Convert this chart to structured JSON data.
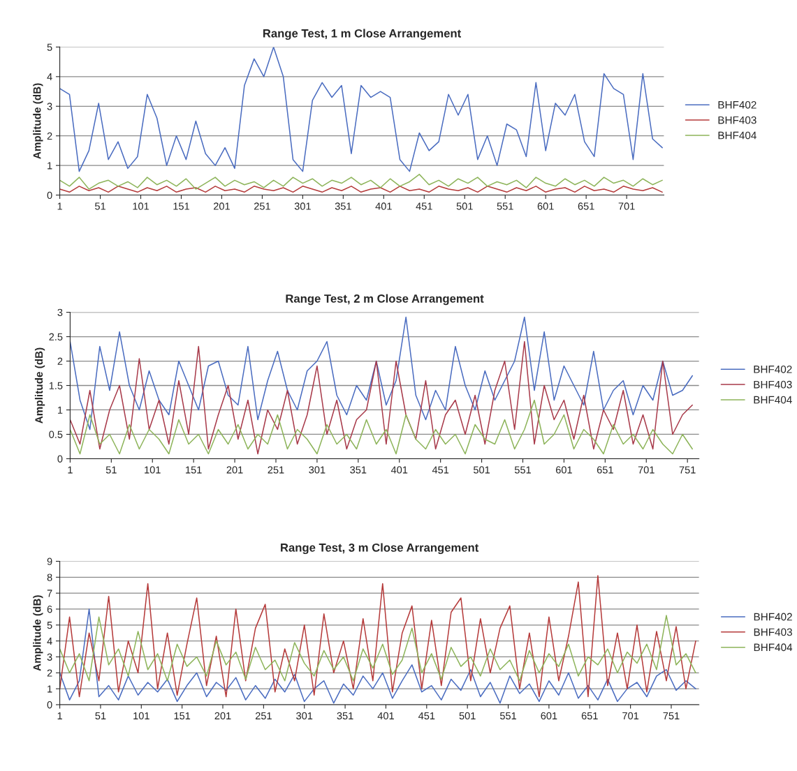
{
  "chart_data": [
    {
      "type": "line",
      "title": "Range Test, 1 m Close Arrangement",
      "ylabel": "Amplitude (dB)",
      "x": [
        1,
        13,
        25,
        37,
        49,
        61,
        73,
        85,
        97,
        109,
        121,
        133,
        145,
        157,
        169,
        181,
        193,
        205,
        217,
        229,
        241,
        253,
        265,
        277,
        289,
        301,
        313,
        325,
        337,
        349,
        361,
        373,
        385,
        397,
        409,
        421,
        433,
        445,
        457,
        469,
        481,
        493,
        505,
        517,
        529,
        541,
        553,
        565,
        577,
        589,
        601,
        613,
        625,
        637,
        649,
        661,
        673,
        685,
        697,
        709,
        721,
        733,
        745
      ],
      "xlim": [
        1,
        747
      ],
      "xticks": [
        1,
        51,
        101,
        151,
        201,
        251,
        301,
        351,
        401,
        451,
        501,
        551,
        601,
        651,
        701
      ],
      "ylim": [
        0,
        5
      ],
      "yticks": [
        0,
        1,
        2,
        3,
        4,
        5
      ],
      "grid": "y",
      "legend": "right",
      "series": [
        {
          "name": "BHF402",
          "color": "#4a6cc0",
          "values": [
            3.6,
            3.4,
            0.8,
            1.5,
            3.1,
            1.2,
            1.8,
            0.9,
            1.3,
            3.4,
            2.6,
            1.0,
            2.0,
            1.2,
            2.5,
            1.4,
            1.0,
            1.6,
            0.9,
            3.7,
            4.6,
            4.0,
            5.0,
            4.0,
            1.2,
            0.8,
            3.2,
            3.8,
            3.3,
            3.7,
            1.4,
            3.7,
            3.3,
            3.5,
            3.3,
            1.2,
            0.8,
            2.1,
            1.5,
            1.8,
            3.4,
            2.7,
            3.4,
            1.2,
            2.0,
            1.0,
            2.4,
            2.2,
            1.3,
            3.8,
            1.5,
            3.1,
            2.7,
            3.4,
            1.8,
            1.3,
            4.1,
            3.6,
            3.4,
            1.2,
            4.1,
            1.9,
            1.6
          ]
        },
        {
          "name": "BHF403",
          "color": "#b53a3a",
          "values": [
            0.2,
            0.1,
            0.3,
            0.15,
            0.25,
            0.1,
            0.3,
            0.2,
            0.1,
            0.25,
            0.15,
            0.3,
            0.1,
            0.2,
            0.25,
            0.1,
            0.3,
            0.15,
            0.2,
            0.1,
            0.3,
            0.2,
            0.15,
            0.25,
            0.1,
            0.3,
            0.2,
            0.1,
            0.25,
            0.15,
            0.3,
            0.1,
            0.2,
            0.25,
            0.1,
            0.3,
            0.15,
            0.2,
            0.1,
            0.3,
            0.2,
            0.15,
            0.25,
            0.1,
            0.3,
            0.2,
            0.1,
            0.25,
            0.15,
            0.3,
            0.1,
            0.2,
            0.25,
            0.1,
            0.3,
            0.15,
            0.2,
            0.1,
            0.3,
            0.2,
            0.15,
            0.25,
            0.1
          ]
        },
        {
          "name": "BHF404",
          "color": "#8db45a",
          "values": [
            0.5,
            0.3,
            0.6,
            0.2,
            0.4,
            0.5,
            0.3,
            0.45,
            0.25,
            0.6,
            0.35,
            0.5,
            0.3,
            0.55,
            0.2,
            0.4,
            0.6,
            0.3,
            0.5,
            0.35,
            0.45,
            0.25,
            0.5,
            0.3,
            0.6,
            0.4,
            0.55,
            0.3,
            0.5,
            0.4,
            0.6,
            0.35,
            0.5,
            0.25,
            0.55,
            0.3,
            0.45,
            0.7,
            0.35,
            0.5,
            0.3,
            0.55,
            0.4,
            0.6,
            0.3,
            0.45,
            0.35,
            0.5,
            0.25,
            0.6,
            0.4,
            0.3,
            0.55,
            0.35,
            0.5,
            0.3,
            0.6,
            0.4,
            0.5,
            0.3,
            0.55,
            0.35,
            0.5
          ]
        }
      ]
    },
    {
      "type": "line",
      "title": "Range Test, 2 m Close Arrangement",
      "ylabel": "Amplitude (dB)",
      "x": [
        1,
        13,
        25,
        37,
        49,
        61,
        73,
        85,
        97,
        109,
        121,
        133,
        145,
        157,
        169,
        181,
        193,
        205,
        217,
        229,
        241,
        253,
        265,
        277,
        289,
        301,
        313,
        325,
        337,
        349,
        361,
        373,
        385,
        397,
        409,
        421,
        433,
        445,
        457,
        469,
        481,
        493,
        505,
        517,
        529,
        541,
        553,
        565,
        577,
        589,
        601,
        613,
        625,
        637,
        649,
        661,
        673,
        685,
        697,
        709,
        721,
        733,
        745,
        757
      ],
      "xlim": [
        1,
        765
      ],
      "xticks": [
        1,
        51,
        101,
        151,
        201,
        251,
        301,
        351,
        401,
        451,
        501,
        551,
        601,
        651,
        701,
        751
      ],
      "ylim": [
        0,
        3
      ],
      "yticks": [
        0,
        0.5,
        1,
        1.5,
        2,
        2.5,
        3
      ],
      "grid": "y",
      "legend": "right",
      "series": [
        {
          "name": "BHF402",
          "color": "#4a6cc0",
          "values": [
            2.4,
            1.2,
            0.6,
            2.3,
            1.4,
            2.6,
            1.5,
            1.0,
            1.8,
            1.2,
            0.9,
            2.0,
            1.5,
            1.0,
            1.9,
            2.0,
            1.3,
            1.1,
            2.3,
            0.8,
            1.6,
            2.2,
            1.4,
            1.0,
            1.8,
            2.0,
            2.4,
            1.3,
            0.9,
            1.5,
            1.2,
            2.0,
            1.1,
            1.6,
            2.9,
            1.3,
            0.8,
            1.4,
            1.0,
            2.3,
            1.5,
            1.0,
            1.8,
            1.2,
            1.6,
            2.0,
            2.9,
            1.4,
            2.6,
            1.2,
            1.9,
            1.5,
            1.1,
            2.2,
            1.0,
            1.4,
            1.6,
            0.9,
            1.5,
            1.2,
            2.0,
            1.3,
            1.4,
            1.7
          ]
        },
        {
          "name": "BHF403",
          "color": "#a83a4a",
          "values": [
            0.8,
            0.3,
            1.4,
            0.2,
            1.0,
            1.5,
            0.4,
            2.05,
            0.6,
            1.2,
            0.3,
            1.6,
            0.5,
            2.3,
            0.2,
            0.9,
            1.5,
            0.4,
            1.2,
            0.1,
            1.0,
            0.6,
            1.4,
            0.3,
            0.9,
            1.9,
            0.5,
            1.2,
            0.2,
            0.8,
            1.0,
            2.0,
            0.3,
            2.0,
            0.9,
            0.4,
            1.6,
            0.2,
            0.9,
            1.2,
            0.5,
            1.3,
            0.3,
            1.4,
            2.0,
            0.6,
            2.4,
            0.3,
            1.5,
            0.8,
            1.2,
            0.4,
            1.3,
            0.2,
            1.0,
            0.6,
            1.4,
            0.3,
            0.9,
            0.2,
            2.0,
            0.5,
            0.9,
            1.1
          ]
        },
        {
          "name": "BHF404",
          "color": "#8db45a",
          "values": [
            0.6,
            0.1,
            0.9,
            0.3,
            0.5,
            0.1,
            0.7,
            0.2,
            0.6,
            0.4,
            0.1,
            0.8,
            0.3,
            0.5,
            0.1,
            0.6,
            0.3,
            0.7,
            0.2,
            0.5,
            0.3,
            0.9,
            0.2,
            0.6,
            0.4,
            0.1,
            0.7,
            0.3,
            0.5,
            0.2,
            0.8,
            0.3,
            0.6,
            0.1,
            0.9,
            0.4,
            0.2,
            0.6,
            0.3,
            0.5,
            0.1,
            0.7,
            0.4,
            0.3,
            0.8,
            0.2,
            0.6,
            1.2,
            0.3,
            0.5,
            0.9,
            0.2,
            0.6,
            0.4,
            0.1,
            0.7,
            0.3,
            0.5,
            0.2,
            0.6,
            0.3,
            0.1,
            0.5,
            0.2
          ]
        }
      ]
    },
    {
      "type": "line",
      "title": "Range Test, 3 m Close Arrangement",
      "ylabel": "Amplitude (dB)",
      "x": [
        1,
        13,
        25,
        37,
        49,
        61,
        73,
        85,
        97,
        109,
        121,
        133,
        145,
        157,
        169,
        181,
        193,
        205,
        217,
        229,
        241,
        253,
        265,
        277,
        289,
        301,
        313,
        325,
        337,
        349,
        361,
        373,
        385,
        397,
        409,
        421,
        433,
        445,
        457,
        469,
        481,
        493,
        505,
        517,
        529,
        541,
        553,
        565,
        577,
        589,
        601,
        613,
        625,
        637,
        649,
        661,
        673,
        685,
        697,
        709,
        721,
        733,
        745,
        757,
        769,
        781
      ],
      "xlim": [
        1,
        785
      ],
      "xticks": [
        1,
        51,
        101,
        151,
        201,
        251,
        301,
        351,
        401,
        451,
        501,
        551,
        601,
        651,
        701,
        751
      ],
      "ylim": [
        0,
        9
      ],
      "yticks": [
        0,
        1,
        2,
        3,
        4,
        5,
        6,
        7,
        8,
        9
      ],
      "grid": "y",
      "legend": "right",
      "series": [
        {
          "name": "BHF402",
          "color": "#4a6cc0",
          "values": [
            2.0,
            0.3,
            1.5,
            6.0,
            0.5,
            1.2,
            0.3,
            1.8,
            0.6,
            1.4,
            0.8,
            1.6,
            0.2,
            1.2,
            2.0,
            0.5,
            1.4,
            0.9,
            1.7,
            0.3,
            1.2,
            0.4,
            1.6,
            0.8,
            1.9,
            0.2,
            1.0,
            1.5,
            0.1,
            1.3,
            0.6,
            1.8,
            1.0,
            2.0,
            0.4,
            1.5,
            2.5,
            0.8,
            1.2,
            0.3,
            1.6,
            0.9,
            2.2,
            0.5,
            1.4,
            0.1,
            1.8,
            0.7,
            1.3,
            0.2,
            1.5,
            0.6,
            2.0,
            0.4,
            1.2,
            0.3,
            1.6,
            0.2,
            1.0,
            1.4,
            0.5,
            1.8,
            2.2,
            0.9,
            1.5,
            1.0
          ]
        },
        {
          "name": "BHF403",
          "color": "#b53a3a",
          "values": [
            1.0,
            5.5,
            0.5,
            4.5,
            1.5,
            6.8,
            0.8,
            4.0,
            2.0,
            7.6,
            1.0,
            4.5,
            0.6,
            3.8,
            6.7,
            1.2,
            4.3,
            0.5,
            6.0,
            1.5,
            4.8,
            6.3,
            0.8,
            3.5,
            1.5,
            5.0,
            0.6,
            5.7,
            2.0,
            4.0,
            1.0,
            5.4,
            1.5,
            7.6,
            0.8,
            4.5,
            6.2,
            1.0,
            5.3,
            1.2,
            5.8,
            6.7,
            1.5,
            5.4,
            2.0,
            4.8,
            6.2,
            1.0,
            4.5,
            0.5,
            5.5,
            1.5,
            4.3,
            7.7,
            0.5,
            8.1,
            1.2,
            4.5,
            1.0,
            5.0,
            0.8,
            4.6,
            1.5,
            4.9,
            1.0,
            4.0
          ]
        },
        {
          "name": "BHF404",
          "color": "#8db45a",
          "values": [
            3.5,
            2.0,
            3.2,
            1.5,
            5.5,
            2.5,
            3.5,
            1.8,
            4.6,
            2.2,
            3.2,
            1.5,
            3.8,
            2.4,
            3.0,
            1.8,
            4.0,
            2.5,
            3.3,
            1.6,
            3.6,
            2.2,
            2.8,
            1.5,
            3.9,
            2.6,
            1.8,
            3.4,
            2.2,
            3.0,
            1.5,
            3.5,
            2.3,
            3.8,
            1.9,
            2.8,
            4.8,
            2.0,
            3.2,
            1.6,
            3.6,
            2.4,
            3.0,
            1.8,
            3.5,
            2.2,
            2.8,
            1.5,
            3.4,
            2.0,
            3.2,
            2.4,
            3.8,
            1.8,
            3.0,
            2.5,
            3.5,
            2.0,
            3.3,
            2.6,
            3.8,
            2.2,
            5.6,
            2.5,
            3.2,
            2.0
          ]
        }
      ]
    }
  ]
}
